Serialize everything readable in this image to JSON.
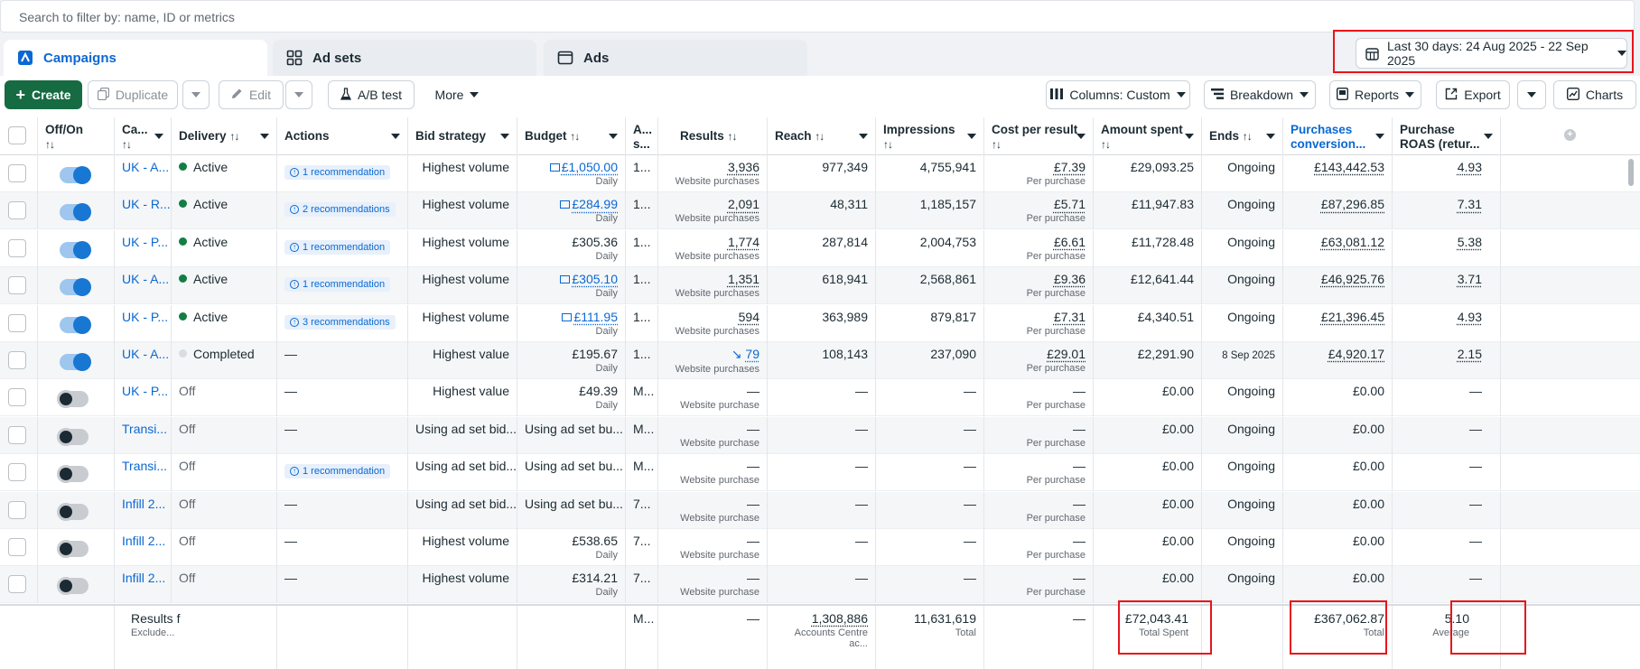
{
  "search": {
    "placeholder": "Search to filter by: name, ID or metrics"
  },
  "tabs": [
    {
      "label": "Campaigns",
      "active": true
    },
    {
      "label": "Ad sets",
      "active": false
    },
    {
      "label": "Ads",
      "active": false
    }
  ],
  "date_range": {
    "label": "Last 30 days: 24 Aug 2025 - 22 Sep 2025"
  },
  "toolbar": {
    "create": "Create",
    "duplicate": "Duplicate",
    "edit": "Edit",
    "ab_test": "A/B test",
    "more": "More",
    "columns": "Columns: Custom",
    "breakdown": "Breakdown",
    "reports": "Reports",
    "export": "Export",
    "charts": "Charts"
  },
  "headers": {
    "off_on": "Off/On",
    "campaign": "Ca...",
    "delivery": "Delivery",
    "actions": "Actions",
    "bid_strategy": "Bid strategy",
    "budget": "Budget",
    "attribution": "A... s...",
    "results": "Results",
    "reach": "Reach",
    "impressions": "Impressions",
    "cost_per_result": "Cost per result",
    "amount_spent": "Amount spent",
    "ends": "Ends",
    "purchases_conv": "Purchases conversion...",
    "purchase_roas": "Purchase ROAS (retur..."
  },
  "rows": [
    {
      "on": true,
      "name": "UK - A...",
      "delivery": "Active",
      "status": "active",
      "rec": "1 recommendation",
      "bid": "Highest volume",
      "budget": "£1,050.00",
      "budget_link": true,
      "budget_sub": "Daily",
      "attr": "1...",
      "results": "3,936",
      "results_sub": "Website purchases",
      "reach": "977,349",
      "impressions": "4,755,941",
      "cpr": "£7.39",
      "cpr_sub": "Per purchase",
      "spent": "£29,093.25",
      "ends": "Ongoing",
      "pcv": "£143,442.53",
      "roas": "4.93"
    },
    {
      "on": true,
      "name": "UK - R...",
      "delivery": "Active",
      "status": "active",
      "rec": "2 recommendations",
      "bid": "Highest volume",
      "budget": "£284.99",
      "budget_link": true,
      "budget_sub": "Daily",
      "attr": "1...",
      "results": "2,091",
      "results_sub": "Website purchases",
      "reach": "48,311",
      "impressions": "1,185,157",
      "cpr": "£5.71",
      "cpr_sub": "Per purchase",
      "spent": "£11,947.83",
      "ends": "Ongoing",
      "pcv": "£87,296.85",
      "roas": "7.31"
    },
    {
      "on": true,
      "name": "UK - P...",
      "delivery": "Active",
      "status": "active",
      "rec": "1 recommendation",
      "bid": "Highest volume",
      "budget": "£305.36",
      "budget_link": false,
      "budget_sub": "Daily",
      "attr": "1...",
      "results": "1,774",
      "results_sub": "Website purchases",
      "reach": "287,814",
      "impressions": "2,004,753",
      "cpr": "£6.61",
      "cpr_sub": "Per purchase",
      "spent": "£11,728.48",
      "ends": "Ongoing",
      "pcv": "£63,081.12",
      "roas": "5.38"
    },
    {
      "on": true,
      "name": "UK - A...",
      "delivery": "Active",
      "status": "active",
      "rec": "1 recommendation",
      "bid": "Highest volume",
      "budget": "£305.10",
      "budget_link": true,
      "budget_sub": "Daily",
      "attr": "1...",
      "results": "1,351",
      "results_sub": "Website purchases",
      "reach": "618,941",
      "impressions": "2,568,861",
      "cpr": "£9.36",
      "cpr_sub": "Per purchase",
      "spent": "£12,641.44",
      "ends": "Ongoing",
      "pcv": "£46,925.76",
      "roas": "3.71"
    },
    {
      "on": true,
      "name": "UK - P...",
      "delivery": "Active",
      "status": "active",
      "rec": "3 recommendations",
      "bid": "Highest volume",
      "budget": "£111.95",
      "budget_link": true,
      "budget_sub": "Daily",
      "attr": "1...",
      "results": "594",
      "results_sub": "Website purchases",
      "reach": "363,989",
      "impressions": "879,817",
      "cpr": "£7.31",
      "cpr_sub": "Per purchase",
      "spent": "£4,340.51",
      "ends": "Ongoing",
      "pcv": "£21,396.45",
      "roas": "4.93"
    },
    {
      "on": true,
      "name": "UK - A...",
      "delivery": "Completed",
      "status": "completed",
      "rec": "",
      "actions_text": "—",
      "bid": "Highest value",
      "budget": "£195.67",
      "budget_link": false,
      "budget_sub": "Daily",
      "attr": "1...",
      "results": "79",
      "results_trend": true,
      "results_sub": "Website purchases",
      "reach": "108,143",
      "impressions": "237,090",
      "cpr": "£29.01",
      "cpr_sub": "Per purchase",
      "spent": "£2,291.90",
      "ends": "8 Sep 2025",
      "pcv": "£4,920.17",
      "roas": "2.15"
    },
    {
      "on": false,
      "name": "UK - P...",
      "delivery": "Off",
      "status": "off",
      "rec": "",
      "actions_text": "—",
      "bid": "Highest value",
      "budget": "£49.39",
      "budget_link": false,
      "budget_sub": "Daily",
      "attr": "M...",
      "results": "—",
      "results_sub": "Website purchase",
      "reach": "—",
      "impressions": "—",
      "cpr": "—",
      "cpr_sub": "Per purchase",
      "spent": "£0.00",
      "ends": "Ongoing",
      "pcv": "£0.00",
      "roas": "—"
    },
    {
      "on": false,
      "name": "Transi...",
      "delivery": "Off",
      "status": "off",
      "rec": "",
      "actions_text": "—",
      "bid": "Using ad set bid...",
      "budget": "Using ad set bu...",
      "budget_link": false,
      "budget_sub": "",
      "attr": "M...",
      "results": "—",
      "results_sub": "Website purchase",
      "reach": "—",
      "impressions": "—",
      "cpr": "—",
      "cpr_sub": "Per purchase",
      "spent": "£0.00",
      "ends": "Ongoing",
      "pcv": "£0.00",
      "roas": "—"
    },
    {
      "on": false,
      "name": "Transi...",
      "delivery": "Off",
      "status": "off",
      "rec": "1 recommendation",
      "bid": "Using ad set bid...",
      "budget": "Using ad set bu...",
      "budget_link": false,
      "budget_sub": "",
      "attr": "M...",
      "results": "—",
      "results_sub": "Website purchase",
      "reach": "—",
      "impressions": "—",
      "cpr": "—",
      "cpr_sub": "Per purchase",
      "spent": "£0.00",
      "ends": "Ongoing",
      "pcv": "£0.00",
      "roas": "—"
    },
    {
      "on": false,
      "name": "Infill 2...",
      "delivery": "Off",
      "status": "off",
      "rec": "",
      "actions_text": "—",
      "bid": "Using ad set bid...",
      "budget": "Using ad set bu...",
      "budget_link": false,
      "budget_sub": "",
      "attr": "7...",
      "results": "—",
      "results_sub": "Website purchase",
      "reach": "—",
      "impressions": "—",
      "cpr": "—",
      "cpr_sub": "Per purchase",
      "spent": "£0.00",
      "ends": "Ongoing",
      "pcv": "£0.00",
      "roas": "—"
    },
    {
      "on": false,
      "name": "Infill 2...",
      "delivery": "Off",
      "status": "off",
      "rec": "",
      "actions_text": "—",
      "bid": "Highest volume",
      "budget": "£538.65",
      "budget_link": false,
      "budget_sub": "Daily",
      "attr": "7...",
      "results": "—",
      "results_sub": "Website purchase",
      "reach": "—",
      "impressions": "—",
      "cpr": "—",
      "cpr_sub": "Per purchase",
      "spent": "£0.00",
      "ends": "Ongoing",
      "pcv": "£0.00",
      "roas": "—"
    },
    {
      "on": false,
      "name": "Infill 2...",
      "delivery": "Off",
      "status": "off",
      "rec": "",
      "actions_text": "—",
      "bid": "Highest volume",
      "budget": "£314.21",
      "budget_link": false,
      "budget_sub": "Daily",
      "attr": "7...",
      "results": "—",
      "results_sub": "Website purchase",
      "reach": "—",
      "impressions": "—",
      "cpr": "—",
      "cpr_sub": "Per purchase",
      "spent": "£0.00",
      "ends": "Ongoing",
      "pcv": "£0.00",
      "roas": "—"
    }
  ],
  "totals": {
    "label": "Results f",
    "label_sub": "Exclude...",
    "attr": "M...",
    "results": "—",
    "reach": "1,308,886",
    "reach_sub": "Accounts Centre ac...",
    "impressions": "11,631,619",
    "impressions_sub": "Total",
    "cpr": "—",
    "spent": "£72,043.41",
    "spent_sub": "Total Spent",
    "pcv": "£367,062.87",
    "pcv_sub": "Total",
    "roas": "5.10",
    "roas_sub": "Average"
  },
  "colors": {
    "accent": "#0a68d3",
    "create": "#166b42",
    "active": "#137e43",
    "highlight": "#e8151b"
  }
}
